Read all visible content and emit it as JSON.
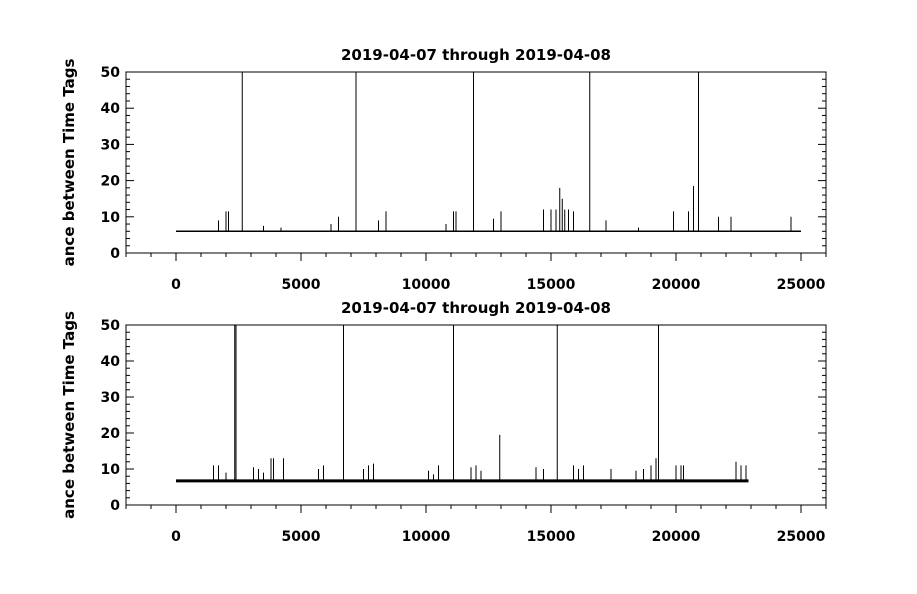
{
  "chart_data": [
    {
      "type": "line",
      "title": "2019-04-07 through 2019-04-08",
      "ylabel": "ance between Time Tags",
      "xlabel": "",
      "xlim": [
        -2000,
        26000
      ],
      "ylim": [
        0,
        50
      ],
      "x_ticks": [
        0,
        5000,
        10000,
        15000,
        20000,
        25000
      ],
      "y_ticks": [
        0,
        10,
        20,
        30,
        40,
        50
      ],
      "grid": false,
      "series": [
        {
          "x_range": [
            0,
            25000
          ],
          "baseline": 6,
          "spikes": [
            {
              "x": 1700,
              "y": 9
            },
            {
              "x": 2000,
              "y": 11.5
            },
            {
              "x": 2100,
              "y": 11.5
            },
            {
              "x": 2650,
              "y": 50
            },
            {
              "x": 3500,
              "y": 7.5
            },
            {
              "x": 4200,
              "y": 7
            },
            {
              "x": 6200,
              "y": 8
            },
            {
              "x": 6500,
              "y": 10
            },
            {
              "x": 7200,
              "y": 50
            },
            {
              "x": 8100,
              "y": 9
            },
            {
              "x": 8400,
              "y": 11.5
            },
            {
              "x": 10800,
              "y": 8
            },
            {
              "x": 11100,
              "y": 11.5
            },
            {
              "x": 11200,
              "y": 11.5
            },
            {
              "x": 11900,
              "y": 50
            },
            {
              "x": 12700,
              "y": 9.5
            },
            {
              "x": 13000,
              "y": 11.5
            },
            {
              "x": 14700,
              "y": 12
            },
            {
              "x": 15000,
              "y": 12
            },
            {
              "x": 15200,
              "y": 12
            },
            {
              "x": 15350,
              "y": 18
            },
            {
              "x": 15450,
              "y": 15
            },
            {
              "x": 15550,
              "y": 12
            },
            {
              "x": 15700,
              "y": 12
            },
            {
              "x": 15900,
              "y": 11.5
            },
            {
              "x": 16550,
              "y": 50
            },
            {
              "x": 17200,
              "y": 9
            },
            {
              "x": 18500,
              "y": 7
            },
            {
              "x": 19900,
              "y": 11.5
            },
            {
              "x": 20500,
              "y": 11.5
            },
            {
              "x": 20700,
              "y": 18.5
            },
            {
              "x": 20900,
              "y": 50
            },
            {
              "x": 21700,
              "y": 10
            },
            {
              "x": 22200,
              "y": 10
            },
            {
              "x": 24600,
              "y": 10
            }
          ]
        }
      ]
    },
    {
      "type": "line",
      "title": "2019-04-07 through 2019-04-08",
      "ylabel": "ance between Time Tags",
      "xlabel": "",
      "xlim": [
        -2000,
        26000
      ],
      "ylim": [
        0,
        50
      ],
      "x_ticks": [
        0,
        5000,
        10000,
        15000,
        20000,
        25000
      ],
      "y_ticks": [
        0,
        10,
        20,
        30,
        40,
        50
      ],
      "grid": false,
      "series": [
        {
          "x_range": [
            0,
            22900
          ],
          "baseline": 6.7,
          "spikes": [
            {
              "x": 1500,
              "y": 11
            },
            {
              "x": 1700,
              "y": 11
            },
            {
              "x": 2000,
              "y": 9
            },
            {
              "x": 2350,
              "y": 50
            },
            {
              "x": 2400,
              "y": 50
            },
            {
              "x": 3100,
              "y": 10.5
            },
            {
              "x": 3300,
              "y": 10
            },
            {
              "x": 3500,
              "y": 9
            },
            {
              "x": 3800,
              "y": 13
            },
            {
              "x": 3900,
              "y": 13
            },
            {
              "x": 4300,
              "y": 13
            },
            {
              "x": 5700,
              "y": 10
            },
            {
              "x": 5900,
              "y": 11
            },
            {
              "x": 6700,
              "y": 50
            },
            {
              "x": 7500,
              "y": 10
            },
            {
              "x": 7700,
              "y": 11
            },
            {
              "x": 7900,
              "y": 11.5
            },
            {
              "x": 10100,
              "y": 9.5
            },
            {
              "x": 10300,
              "y": 8.5
            },
            {
              "x": 10500,
              "y": 11
            },
            {
              "x": 11100,
              "y": 50
            },
            {
              "x": 11800,
              "y": 10.5
            },
            {
              "x": 12000,
              "y": 11
            },
            {
              "x": 12200,
              "y": 9.5
            },
            {
              "x": 12950,
              "y": 19.5
            },
            {
              "x": 14400,
              "y": 10.5
            },
            {
              "x": 14700,
              "y": 10
            },
            {
              "x": 15250,
              "y": 50
            },
            {
              "x": 15900,
              "y": 11
            },
            {
              "x": 16100,
              "y": 10
            },
            {
              "x": 16300,
              "y": 11
            },
            {
              "x": 17400,
              "y": 10
            },
            {
              "x": 18400,
              "y": 9.5
            },
            {
              "x": 18700,
              "y": 10
            },
            {
              "x": 19000,
              "y": 11
            },
            {
              "x": 19300,
              "y": 50
            },
            {
              "x": 19200,
              "y": 13
            },
            {
              "x": 20000,
              "y": 11
            },
            {
              "x": 20200,
              "y": 11
            },
            {
              "x": 20300,
              "y": 11
            },
            {
              "x": 22400,
              "y": 12
            },
            {
              "x": 22600,
              "y": 11
            },
            {
              "x": 22800,
              "y": 11
            }
          ]
        }
      ]
    }
  ]
}
